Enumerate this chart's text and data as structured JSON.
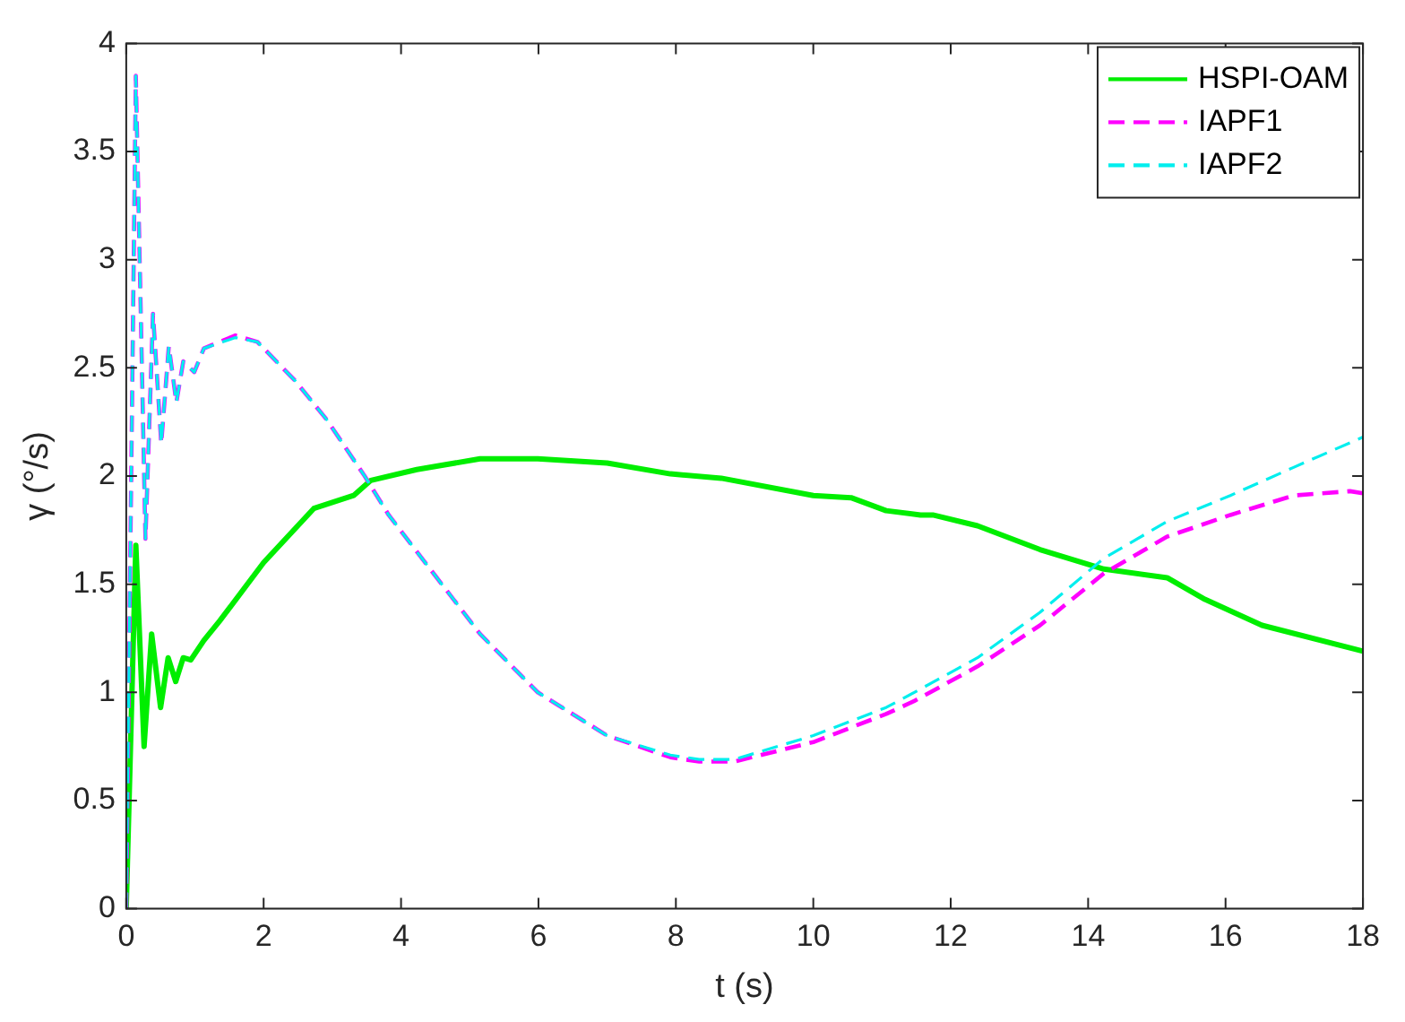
{
  "chart_data": {
    "type": "line",
    "xlabel": "t (s)",
    "ylabel": "γ (°/s)",
    "xlim": [
      0,
      18
    ],
    "ylim": [
      0,
      4
    ],
    "xticks": [
      0,
      2,
      4,
      6,
      8,
      10,
      12,
      14,
      16,
      18
    ],
    "yticks": [
      0,
      0.5,
      1,
      1.5,
      2,
      2.5,
      3,
      3.5,
      4
    ],
    "grid": false,
    "legend": "top right",
    "marker": "none",
    "series": [
      {
        "name": "HSPI-OAM",
        "color": "#00ee00",
        "line_style": "solid",
        "x": [
          0,
          0.14,
          0.26,
          0.37,
          0.5,
          0.61,
          0.72,
          0.83,
          0.94,
          1.13,
          1.36,
          2,
          2.73,
          3.31,
          3.56,
          4.23,
          5.15,
          5.99,
          7,
          7.92,
          8.66,
          10,
          10.55,
          11.06,
          11.56,
          11.74,
          12.39,
          13.3,
          14.23,
          15.15,
          15.7,
          16.53,
          18
        ],
        "values": [
          0,
          1.68,
          0.75,
          1.27,
          0.93,
          1.16,
          1.05,
          1.16,
          1.15,
          1.24,
          1.33,
          1.6,
          1.85,
          1.91,
          1.98,
          2.03,
          2.08,
          2.08,
          2.06,
          2.01,
          1.99,
          1.91,
          1.9,
          1.84,
          1.82,
          1.82,
          1.77,
          1.66,
          1.57,
          1.53,
          1.43,
          1.31,
          1.19
        ]
      },
      {
        "name": "IAPF1",
        "color": "#ff00ff",
        "line_style": "dashed",
        "x": [
          0,
          0.14,
          0.28,
          0.39,
          0.51,
          0.62,
          0.73,
          0.83,
          0.99,
          1.13,
          1.59,
          1.91,
          2.46,
          2.92,
          3.47,
          3.82,
          4.23,
          5.15,
          5.99,
          7,
          7.92,
          8.34,
          8.85,
          10,
          11.06,
          11.47,
          12.39,
          13.3,
          14.23,
          15.15,
          16.07,
          16.99,
          17.81,
          18
        ],
        "values": [
          0,
          3.85,
          1.71,
          2.75,
          2.15,
          2.6,
          2.34,
          2.53,
          2.48,
          2.59,
          2.65,
          2.62,
          2.44,
          2.26,
          2.0,
          1.82,
          1.65,
          1.27,
          1.0,
          0.8,
          0.7,
          0.68,
          0.68,
          0.77,
          0.9,
          0.96,
          1.12,
          1.31,
          1.55,
          1.72,
          1.82,
          1.91,
          1.93,
          1.92
        ]
      },
      {
        "name": "IAPF2",
        "color": "#00eeee",
        "line_style": "dashed",
        "x": [
          0,
          0.14,
          0.28,
          0.39,
          0.51,
          0.62,
          0.73,
          0.83,
          0.99,
          1.13,
          1.59,
          1.91,
          2.46,
          2.92,
          3.47,
          3.82,
          4.23,
          5.15,
          5.99,
          7,
          7.92,
          8.34,
          8.85,
          10,
          11.06,
          11.47,
          12.39,
          13.3,
          14.23,
          15.15,
          16.07,
          16.99,
          18
        ],
        "values": [
          0,
          3.85,
          1.71,
          2.75,
          2.15,
          2.6,
          2.34,
          2.53,
          2.48,
          2.59,
          2.64,
          2.62,
          2.44,
          2.26,
          2.0,
          1.82,
          1.65,
          1.27,
          1.0,
          0.8,
          0.71,
          0.69,
          0.69,
          0.8,
          0.93,
          1.0,
          1.16,
          1.37,
          1.62,
          1.79,
          1.91,
          2.04,
          2.18
        ]
      }
    ]
  }
}
